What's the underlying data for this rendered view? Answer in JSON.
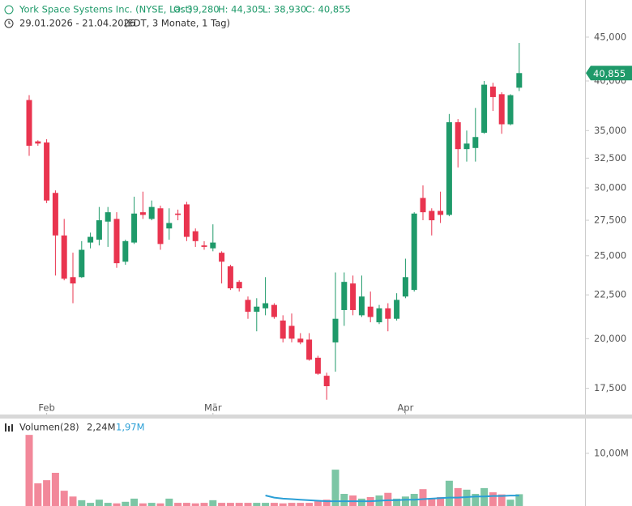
{
  "chart_data": [
    {
      "type": "candlestick",
      "title": "York Space Systems Inc. (NYSE, Last)",
      "ohlc_labels": [
        "O: 39,280",
        "H: 44,305",
        "L: 38,930",
        "C: 40,855"
      ],
      "subtitle": "29.01.2026 - 21.04.2026",
      "subtitle_note": "(EDT, 3 Monate, 1 Tag)",
      "categories": [
        null,
        null,
        "Feb",
        null,
        null,
        null,
        null,
        null,
        null,
        null,
        null,
        null,
        null,
        null,
        null,
        null,
        null,
        null,
        null,
        null,
        null,
        "Mär",
        null,
        null,
        null,
        null,
        null,
        null,
        null,
        null,
        null,
        null,
        null,
        null,
        null,
        null,
        null,
        null,
        null,
        null,
        null,
        null,
        null,
        "Apr",
        null,
        null,
        null,
        null,
        null,
        null,
        null,
        null,
        null,
        null,
        null,
        null,
        null
      ],
      "open": [
        38000,
        34000,
        33900,
        29600,
        26400,
        23600,
        23600,
        25900,
        26100,
        27400,
        27600,
        24600,
        25900,
        28100,
        27600,
        28400,
        26900,
        28000,
        28700,
        26700,
        25700,
        25500,
        25200,
        24300,
        23300,
        22200,
        21500,
        21700,
        21900,
        21000,
        20700,
        20000,
        19950,
        19000,
        18100,
        19800,
        21600,
        23200,
        21300,
        21800,
        20900,
        21700,
        21100,
        22400,
        22800,
        29200,
        28200,
        28200,
        27900,
        35800,
        33300,
        33400,
        34800,
        39400,
        38600,
        35600,
        39280
      ],
      "high": [
        38500,
        34100,
        34200,
        29800,
        27600,
        25200,
        26000,
        26600,
        28500,
        28500,
        28100,
        26100,
        29300,
        29700,
        29000,
        28600,
        28400,
        28300,
        28900,
        26900,
        26000,
        27200,
        25300,
        24400,
        23400,
        22400,
        22300,
        23600,
        22000,
        21300,
        21400,
        20300,
        20300,
        19100,
        18250,
        23900,
        23900,
        23700,
        23700,
        22700,
        21900,
        22000,
        22600,
        24800,
        28100,
        30200,
        28400,
        29700,
        36600,
        36100,
        35000,
        37200,
        40000,
        39800,
        38800,
        38600,
        44305
      ],
      "low": [
        32700,
        33600,
        28800,
        23700,
        23400,
        22000,
        23550,
        25500,
        25700,
        25600,
        24200,
        24400,
        25800,
        27600,
        27500,
        25400,
        26100,
        27500,
        26000,
        25600,
        25400,
        25300,
        23200,
        22800,
        22700,
        21100,
        20400,
        21300,
        21100,
        19800,
        19800,
        19700,
        18850,
        18150,
        16970,
        18300,
        20700,
        21300,
        21200,
        20900,
        20800,
        20400,
        21000,
        22300,
        22700,
        27500,
        26400,
        27300,
        27800,
        31700,
        32200,
        32200,
        34700,
        36900,
        34700,
        35500,
        38930
      ],
      "close": [
        33600,
        33800,
        29000,
        26400,
        23500,
        23200,
        25400,
        26300,
        27500,
        28100,
        24500,
        26000,
        28000,
        27900,
        28500,
        25800,
        27300,
        27900,
        26300,
        26000,
        25600,
        25900,
        24600,
        22900,
        22900,
        21500,
        21800,
        22000,
        21200,
        20000,
        20000,
        19800,
        18900,
        18200,
        17600,
        21100,
        23300,
        21600,
        22400,
        21200,
        21700,
        21100,
        22200,
        23600,
        28000,
        28100,
        27500,
        27900,
        35800,
        33300,
        33800,
        34400,
        39600,
        38300,
        35600,
        38500,
        40855
      ],
      "last_label": "40,855",
      "log_scale": true,
      "ylim": [
        16380,
        49730
      ],
      "yticks": [
        {
          "value": 17500,
          "label": "17,500"
        },
        {
          "value": 20000,
          "label": "20,000"
        },
        {
          "value": 22500,
          "label": "22,500"
        },
        {
          "value": 25000,
          "label": "25,000"
        },
        {
          "value": 27500,
          "label": "27,500"
        },
        {
          "value": 30000,
          "label": "30,000"
        },
        {
          "value": 32500,
          "label": "32,500"
        },
        {
          "value": 35000,
          "label": "35,000"
        },
        {
          "value": 40000,
          "label": "40,000"
        },
        {
          "value": 45000,
          "label": "45,000"
        }
      ],
      "up_color": "#1f9a6a",
      "down_color": "#e9344f"
    },
    {
      "type": "volume",
      "title": "Volumen(28)",
      "series": [
        {
          "values": [
            13.5,
            4.3,
            4.9,
            6.3,
            2.9,
            1.8,
            1.1,
            0.6,
            1.2,
            0.6,
            0.5,
            0.8,
            1.4,
            0.5,
            0.6,
            0.5,
            1.4,
            0.6,
            0.6,
            0.5,
            0.6,
            1.1,
            0.6,
            0.6,
            0.6,
            0.6,
            0.6,
            0.6,
            0.6,
            0.5,
            0.6,
            0.6,
            0.6,
            0.9,
            1.2,
            6.9,
            2.3,
            2.0,
            1.4,
            1.7,
            2.0,
            2.5,
            1.4,
            1.8,
            2.3,
            3.2,
            1.4,
            1.7,
            4.8,
            3.4,
            3.1,
            2.3,
            3.4,
            2.6,
            2.2,
            1.2,
            2.24
          ],
          "last_label": "2,24M",
          "label_color": "#333333"
        },
        {
          "values": [
            null,
            null,
            null,
            null,
            null,
            null,
            null,
            null,
            null,
            null,
            null,
            null,
            null,
            null,
            null,
            null,
            null,
            null,
            null,
            null,
            null,
            null,
            null,
            null,
            null,
            null,
            null,
            2.0,
            1.6,
            1.4,
            1.3,
            1.2,
            1.1,
            1.0,
            0.9,
            0.9,
            0.9,
            0.9,
            0.9,
            0.9,
            1.0,
            1.1,
            1.1,
            1.2,
            1.2,
            1.3,
            1.4,
            1.5,
            1.6,
            1.6,
            1.7,
            1.8,
            1.8,
            1.9,
            1.9,
            1.97,
            1.97
          ],
          "last_label": "1,97M",
          "color": "#2a9fd6"
        }
      ],
      "ylim": [
        0,
        16.6
      ],
      "yticks": [
        {
          "value": 10,
          "label": "10,00M"
        }
      ],
      "up_color": "#7cc6a5",
      "down_color": "#f2889a"
    }
  ]
}
